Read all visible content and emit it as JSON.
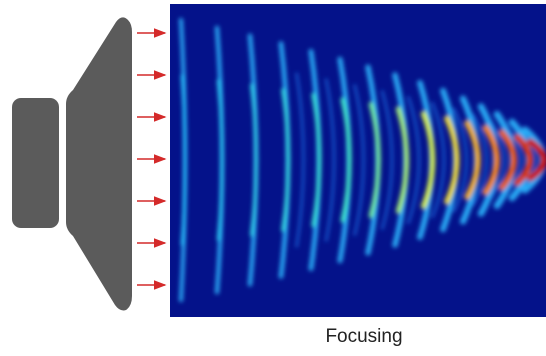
{
  "caption": "Focusing"
}
